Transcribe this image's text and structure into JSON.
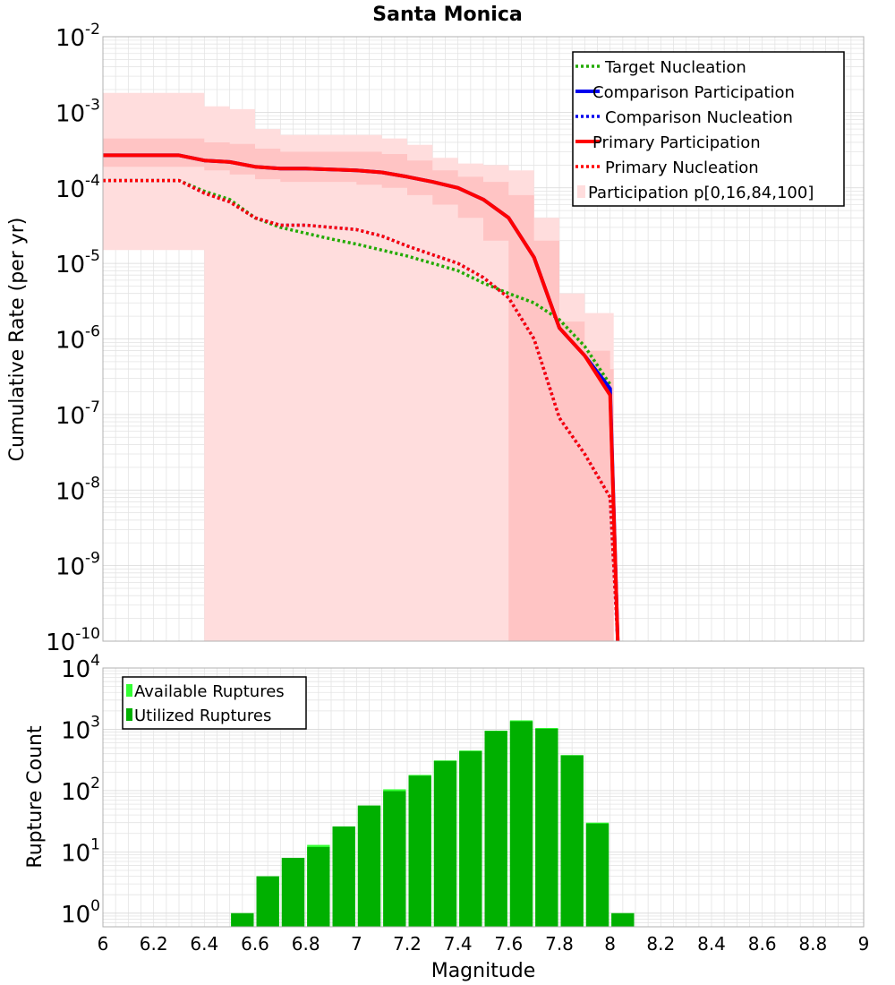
{
  "colors": {
    "target_nucleation": "#22aa00",
    "comparison": "#0000ee",
    "primary": "#ff0000",
    "band_outer": "#ffdddd",
    "band_inner": "#ffbbbb",
    "available": "#33ff33",
    "utilized": "#00b000",
    "grid": "#e4e4e4"
  },
  "chart_data": [
    {
      "type": "line",
      "title": "Santa Monica",
      "xlabel": "",
      "ylabel": "Cumulative Rate (per yr)",
      "xscale": "linear",
      "yscale": "log",
      "xlim": [
        6,
        9
      ],
      "ylim": [
        1e-10,
        0.01
      ],
      "ytick_labels": [
        {
          "base": "10",
          "exp": "-10",
          "value": 1e-10
        },
        {
          "base": "10",
          "exp": "-9",
          "value": 1e-09
        },
        {
          "base": "10",
          "exp": "-8",
          "value": 1e-08
        },
        {
          "base": "10",
          "exp": "-7",
          "value": 1e-07
        },
        {
          "base": "10",
          "exp": "-6",
          "value": 1e-06
        },
        {
          "base": "10",
          "exp": "-5",
          "value": 1e-05
        },
        {
          "base": "10",
          "exp": "-4",
          "value": 0.0001
        },
        {
          "base": "10",
          "exp": "-3",
          "value": 0.001
        },
        {
          "base": "10",
          "exp": "-2",
          "value": 0.01
        }
      ],
      "legend_position": "top-right",
      "legend": [
        {
          "label": "Target Nucleation",
          "style": "dotted",
          "color_key": "target_nucleation"
        },
        {
          "label": "Comparison Participation",
          "style": "solid",
          "color_key": "comparison"
        },
        {
          "label": "Comparison Nucleation",
          "style": "dotted",
          "color_key": "comparison"
        },
        {
          "label": "Primary Participation",
          "style": "solid",
          "color_key": "primary"
        },
        {
          "label": "Primary Nucleation",
          "style": "dotted",
          "color_key": "primary"
        },
        {
          "label": "Participation p[0,16,84,100]",
          "style": "box",
          "color_key": "band_outer"
        }
      ],
      "bands": [
        {
          "name": "Participation p[0,100]",
          "x": [
            6.0,
            6.3,
            6.4,
            6.5,
            6.6,
            6.7,
            6.8,
            6.9,
            7.0,
            7.1,
            7.2,
            7.3,
            7.4,
            7.5,
            7.6,
            7.7,
            7.8,
            7.9,
            8.0
          ],
          "upper": [
            0.0018,
            0.0018,
            0.0012,
            0.0011,
            0.0006,
            0.0005,
            0.0005,
            0.0005,
            0.0005,
            0.00045,
            0.00037,
            0.00025,
            0.00021,
            0.0002,
            0.00017,
            4e-05,
            4e-06,
            2.2e-06,
            2.2e-06
          ],
          "lower": [
            1.5e-05,
            1.5e-05,
            1e-10,
            1e-10,
            1e-10,
            1e-10,
            1e-10,
            1e-10,
            1e-10,
            1e-10,
            1e-10,
            1e-10,
            1e-10,
            1e-10,
            1e-10,
            1e-10,
            1e-10,
            1e-10,
            1e-10
          ]
        },
        {
          "name": "Participation p[16,84]",
          "x": [
            6.0,
            6.3,
            6.4,
            6.5,
            6.6,
            6.7,
            6.8,
            6.9,
            7.0,
            7.1,
            7.2,
            7.3,
            7.4,
            7.5,
            7.6,
            7.7,
            7.8,
            7.9,
            8.0
          ],
          "upper": [
            0.00045,
            0.00045,
            0.0004,
            0.00038,
            0.00033,
            0.0003,
            0.0003,
            0.0003,
            0.0003,
            0.00028,
            0.00023,
            0.00017,
            0.00014,
            0.00012,
            8e-05,
            2e-05,
            1.7e-06,
            7e-07,
            4e-07
          ],
          "lower": [
            0.00019,
            0.00019,
            0.00017,
            0.00015,
            0.00013,
            0.00012,
            0.00012,
            0.00012,
            0.00011,
            0.0001,
            8e-05,
            6e-05,
            4e-05,
            2e-05,
            1e-10,
            1e-10,
            1e-10,
            1e-10,
            1e-10
          ]
        }
      ],
      "series": [
        {
          "name": "Target Nucleation",
          "style": "dotted",
          "color_key": "target_nucleation",
          "x": [
            6.0,
            6.3,
            6.4,
            6.5,
            6.6,
            6.7,
            6.8,
            6.9,
            7.0,
            7.1,
            7.2,
            7.3,
            7.4,
            7.5,
            7.6,
            7.7,
            7.8,
            7.9,
            8.0
          ],
          "y": [
            0.000125,
            0.000125,
            9e-05,
            7e-05,
            4e-05,
            3e-05,
            2.5e-05,
            2.1e-05,
            1.8e-05,
            1.5e-05,
            1.25e-05,
            1e-05,
            8e-06,
            5.5e-06,
            4e-06,
            3e-06,
            1.8e-06,
            8e-07,
            2.5e-07
          ]
        },
        {
          "name": "Comparison Participation",
          "style": "solid",
          "color_key": "comparison",
          "x": [
            6.0,
            6.3,
            6.4,
            6.5,
            6.6,
            6.7,
            6.8,
            6.9,
            7.0,
            7.1,
            7.2,
            7.3,
            7.4,
            7.5,
            7.6,
            7.7,
            7.8,
            7.9,
            8.0,
            8.03
          ],
          "y": [
            0.00027,
            0.00027,
            0.00023,
            0.00022,
            0.00019,
            0.00018,
            0.00018,
            0.000175,
            0.00017,
            0.00016,
            0.00014,
            0.00012,
            0.0001,
            7e-05,
            4e-05,
            1.2e-05,
            1.4e-06,
            6e-07,
            2.2e-07,
            1e-10
          ]
        },
        {
          "name": "Comparison Nucleation",
          "style": "dotted",
          "color_key": "comparison",
          "x": [
            6.0,
            6.3,
            6.4,
            6.5,
            6.6,
            6.7,
            6.8,
            6.9,
            7.0,
            7.1,
            7.2,
            7.3,
            7.4,
            7.5,
            7.6,
            7.7,
            7.8,
            7.9,
            8.0,
            8.03
          ],
          "y": [
            0.000125,
            0.000125,
            8.5e-05,
            6.5e-05,
            4e-05,
            3.2e-05,
            3.2e-05,
            3e-05,
            2.8e-05,
            2.3e-05,
            1.7e-05,
            1.3e-05,
            1e-05,
            6.5e-06,
            3.5e-06,
            1e-06,
            9e-08,
            3e-08,
            8e-09,
            1e-10
          ]
        },
        {
          "name": "Primary Participation",
          "style": "solid",
          "color_key": "primary",
          "x": [
            6.0,
            6.3,
            6.4,
            6.5,
            6.6,
            6.7,
            6.8,
            6.9,
            7.0,
            7.1,
            7.2,
            7.3,
            7.4,
            7.5,
            7.6,
            7.7,
            7.8,
            7.9,
            8.0,
            8.03
          ],
          "y": [
            0.00027,
            0.00027,
            0.00023,
            0.00022,
            0.00019,
            0.00018,
            0.00018,
            0.000175,
            0.00017,
            0.00016,
            0.00014,
            0.00012,
            0.0001,
            7e-05,
            4e-05,
            1.2e-05,
            1.4e-06,
            6e-07,
            1.8e-07,
            1e-10
          ]
        },
        {
          "name": "Primary Nucleation",
          "style": "dotted",
          "color_key": "primary",
          "x": [
            6.0,
            6.3,
            6.4,
            6.5,
            6.6,
            6.7,
            6.8,
            6.9,
            7.0,
            7.1,
            7.2,
            7.3,
            7.4,
            7.5,
            7.6,
            7.7,
            7.8,
            7.9,
            8.0,
            8.03
          ],
          "y": [
            0.000125,
            0.000125,
            8.5e-05,
            6.5e-05,
            4e-05,
            3.2e-05,
            3.2e-05,
            3e-05,
            2.8e-05,
            2.3e-05,
            1.7e-05,
            1.3e-05,
            1e-05,
            6.5e-06,
            3.5e-06,
            1e-06,
            9e-08,
            3e-08,
            8e-09,
            1e-10
          ]
        }
      ]
    },
    {
      "type": "bar",
      "title": "",
      "xlabel": "Magnitude",
      "ylabel": "Rupture Count",
      "xscale": "linear",
      "yscale": "log",
      "xlim": [
        6,
        9
      ],
      "ylim": [
        0.6,
        10000
      ],
      "xticks": [
        "6",
        "6.2",
        "6.4",
        "6.6",
        "6.8",
        "7",
        "7.2",
        "7.4",
        "7.6",
        "7.8",
        "8",
        "8.2",
        "8.4",
        "8.6",
        "8.8",
        "9"
      ],
      "ytick_labels": [
        {
          "base": "10",
          "exp": "0",
          "value": 1
        },
        {
          "base": "10",
          "exp": "1",
          "value": 10
        },
        {
          "base": "10",
          "exp": "2",
          "value": 100
        },
        {
          "base": "10",
          "exp": "3",
          "value": 1000
        },
        {
          "base": "10",
          "exp": "4",
          "value": 10000
        }
      ],
      "legend_position": "top-left",
      "legend": [
        {
          "label": "Available Ruptures",
          "color_key": "available"
        },
        {
          "label": "Utilized Ruptures",
          "color_key": "utilized"
        }
      ],
      "bin_width": 0.1,
      "centers": [
        6.55,
        6.65,
        6.75,
        6.85,
        6.95,
        7.05,
        7.15,
        7.25,
        7.35,
        7.45,
        7.55,
        7.65,
        7.75,
        7.85,
        7.95,
        8.05
      ],
      "series": [
        {
          "name": "Available Ruptures",
          "color_key": "available",
          "values": [
            1,
            4,
            8,
            13,
            26,
            57,
            105,
            180,
            310,
            450,
            950,
            1400,
            1050,
            380,
            30,
            1
          ]
        },
        {
          "name": "Utilized Ruptures",
          "color_key": "utilized",
          "values": [
            1,
            4,
            8,
            12,
            26,
            57,
            98,
            175,
            305,
            440,
            940,
            1350,
            1020,
            375,
            29,
            1
          ]
        }
      ]
    }
  ]
}
